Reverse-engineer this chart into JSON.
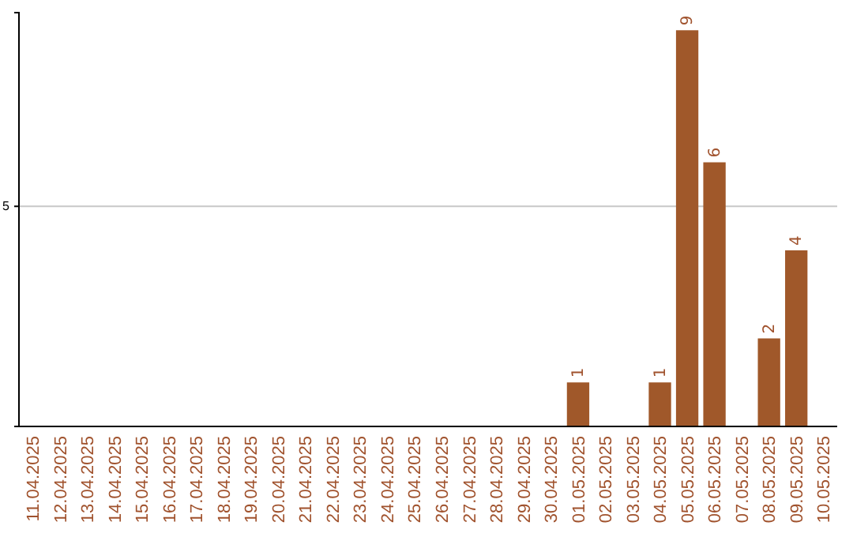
{
  "chart_data": {
    "type": "bar",
    "categories": [
      "11.04.2025",
      "12.04.2025",
      "13.04.2025",
      "14.04.2025",
      "15.04.2025",
      "16.04.2025",
      "17.04.2025",
      "18.04.2025",
      "19.04.2025",
      "20.04.2025",
      "21.04.2025",
      "22.04.2025",
      "23.04.2025",
      "24.04.2025",
      "25.04.2025",
      "26.04.2025",
      "27.04.2025",
      "28.04.2025",
      "29.04.2025",
      "30.04.2025",
      "01.05.2025",
      "02.05.2025",
      "03.05.2025",
      "04.05.2025",
      "05.05.2025",
      "06.05.2025",
      "07.05.2025",
      "08.05.2025",
      "09.05.2025",
      "10.05.2025"
    ],
    "values": [
      null,
      null,
      null,
      null,
      null,
      null,
      null,
      null,
      null,
      null,
      null,
      null,
      null,
      null,
      null,
      null,
      null,
      null,
      null,
      null,
      1,
      null,
      null,
      1,
      9,
      6,
      null,
      2,
      4,
      null
    ],
    "data_labels": true,
    "color": "#a0582a",
    "ylim": [
      0,
      9.4
    ],
    "yticks": [
      5
    ],
    "grid": "y"
  }
}
